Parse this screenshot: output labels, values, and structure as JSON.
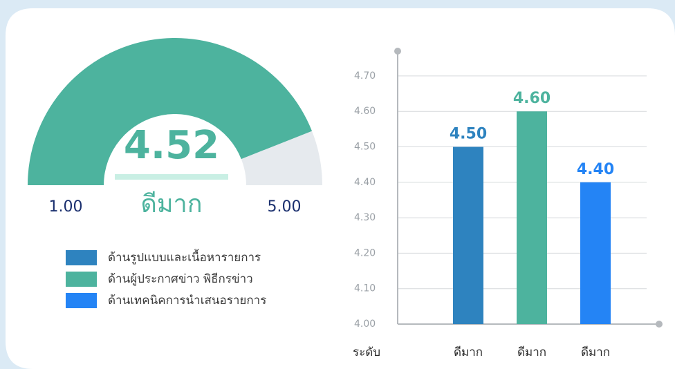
{
  "chart_data": [
    {
      "type": "gauge",
      "value": 4.52,
      "label": "ดีมาก",
      "color": "#4db39e",
      "track_color": "#e6eaee",
      "ticks": [
        {
          "value": 1,
          "label": "1.00"
        },
        {
          "value": 5,
          "label": "5.00"
        }
      ]
    },
    {
      "type": "bar",
      "ylabel": "ระดับ",
      "categories": [
        "ดีมาก",
        "ดีมาก",
        "ดีมาก"
      ],
      "values": [
        4.5,
        4.6,
        4.4
      ],
      "value_labels": [
        "4.50",
        "4.60",
        "4.40"
      ],
      "legend": [
        {
          "name": "ด้านรูปแบบและเนื้อหารายการ",
          "color": "#2e83bf"
        },
        {
          "name": "ด้านผู้ประกาศข่าว พิธีกรข่าว",
          "color": "#4db39e"
        },
        {
          "name": "ด้านเทคนิคการนำเสนอรายการ",
          "color": "#2484f5"
        }
      ],
      "ylim": [
        4,
        4.77
      ],
      "yticks": [
        {
          "value": 4,
          "label": "4.00"
        },
        {
          "value": 4.1,
          "label": "4.10"
        },
        {
          "value": 4.2,
          "label": "4.20"
        },
        {
          "value": 4.3,
          "label": "4.30"
        },
        {
          "value": 4.4,
          "label": "4.40"
        },
        {
          "value": 4.5,
          "label": "4.50"
        },
        {
          "value": 4.6,
          "label": "4.60"
        },
        {
          "value": 4.7,
          "label": "4.70"
        }
      ],
      "grid": true
    }
  ]
}
